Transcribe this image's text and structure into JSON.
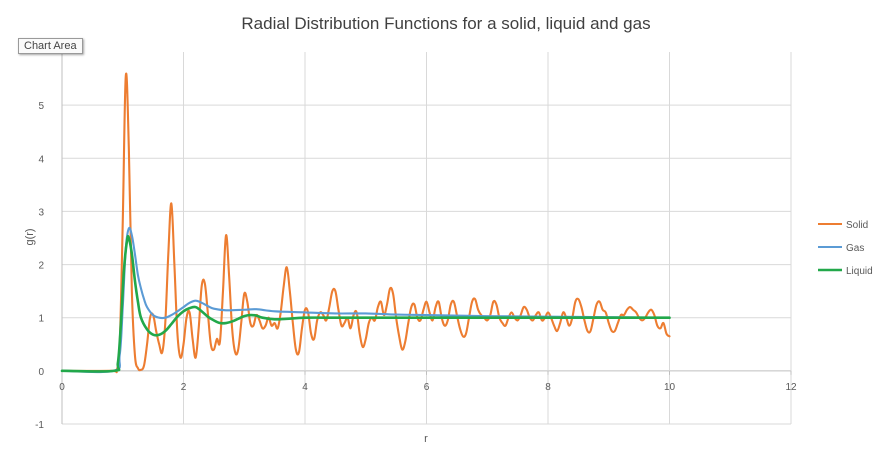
{
  "tooltip": "Chart Area",
  "colors": {
    "grid": "#d9d9d9",
    "axis": "#bfbfbf",
    "text": "#595959",
    "title": "#404040"
  },
  "chart_data": {
    "type": "line",
    "title": "Radial Distribution Functions for a solid, liquid and gas",
    "xlabel": "r",
    "ylabel": "g(r)",
    "xlim": [
      0,
      12
    ],
    "ylim": [
      -1,
      6
    ],
    "x_ticks": [
      0,
      2,
      4,
      6,
      8,
      10,
      12
    ],
    "y_ticks": [
      -1,
      0,
      1,
      2,
      3,
      4,
      5
    ],
    "grid": true,
    "legend": "right",
    "series": [
      {
        "name": "Solid",
        "color": "#ed7d31",
        "points": [
          [
            0,
            0
          ],
          [
            0.8,
            0
          ],
          [
            0.9,
            0.02
          ],
          [
            0.95,
            0.5
          ],
          [
            1.0,
            2.8
          ],
          [
            1.05,
            5.55
          ],
          [
            1.1,
            4.2
          ],
          [
            1.15,
            1.5
          ],
          [
            1.2,
            0.3
          ],
          [
            1.25,
            0.05
          ],
          [
            1.3,
            0.02
          ],
          [
            1.35,
            0.1
          ],
          [
            1.4,
            0.5
          ],
          [
            1.45,
            1.0
          ],
          [
            1.5,
            1.05
          ],
          [
            1.55,
            0.75
          ],
          [
            1.6,
            0.5
          ],
          [
            1.65,
            0.35
          ],
          [
            1.7,
            0.9
          ],
          [
            1.75,
            2.2
          ],
          [
            1.8,
            3.15
          ],
          [
            1.85,
            2.0
          ],
          [
            1.9,
            0.7
          ],
          [
            1.95,
            0.25
          ],
          [
            2.0,
            0.5
          ],
          [
            2.05,
            1.0
          ],
          [
            2.1,
            1.1
          ],
          [
            2.15,
            0.6
          ],
          [
            2.2,
            0.25
          ],
          [
            2.25,
            0.8
          ],
          [
            2.3,
            1.6
          ],
          [
            2.35,
            1.65
          ],
          [
            2.4,
            1.1
          ],
          [
            2.45,
            0.5
          ],
          [
            2.5,
            0.4
          ],
          [
            2.55,
            0.6
          ],
          [
            2.6,
            0.55
          ],
          [
            2.65,
            1.5
          ],
          [
            2.7,
            2.55
          ],
          [
            2.75,
            1.8
          ],
          [
            2.8,
            0.8
          ],
          [
            2.85,
            0.35
          ],
          [
            2.9,
            0.4
          ],
          [
            2.95,
            0.9
          ],
          [
            3.0,
            1.45
          ],
          [
            3.05,
            1.3
          ],
          [
            3.1,
            0.9
          ],
          [
            3.15,
            0.85
          ],
          [
            3.2,
            1.05
          ],
          [
            3.25,
            0.95
          ],
          [
            3.3,
            0.8
          ],
          [
            3.35,
            0.85
          ],
          [
            3.4,
            1.0
          ],
          [
            3.45,
            0.85
          ],
          [
            3.5,
            0.9
          ],
          [
            3.55,
            0.8
          ],
          [
            3.6,
            1.1
          ],
          [
            3.65,
            1.6
          ],
          [
            3.7,
            1.95
          ],
          [
            3.75,
            1.5
          ],
          [
            3.8,
            0.9
          ],
          [
            3.85,
            0.4
          ],
          [
            3.9,
            0.35
          ],
          [
            3.95,
            0.8
          ],
          [
            4.0,
            1.15
          ],
          [
            4.05,
            1.1
          ],
          [
            4.1,
            0.7
          ],
          [
            4.15,
            0.6
          ],
          [
            4.2,
            0.95
          ],
          [
            4.25,
            1.1
          ],
          [
            4.3,
            1.05
          ],
          [
            4.35,
            0.95
          ],
          [
            4.4,
            1.2
          ],
          [
            4.45,
            1.5
          ],
          [
            4.5,
            1.5
          ],
          [
            4.55,
            1.15
          ],
          [
            4.6,
            0.85
          ],
          [
            4.65,
            0.9
          ],
          [
            4.7,
            1.0
          ],
          [
            4.75,
            0.8
          ],
          [
            4.8,
            1.05
          ],
          [
            4.85,
            1.1
          ],
          [
            4.9,
            0.7
          ],
          [
            4.95,
            0.45
          ],
          [
            5.0,
            0.6
          ],
          [
            5.05,
            0.9
          ],
          [
            5.1,
            1.0
          ],
          [
            5.15,
            0.95
          ],
          [
            5.2,
            1.2
          ],
          [
            5.25,
            1.3
          ],
          [
            5.3,
            1.05
          ],
          [
            5.35,
            1.25
          ],
          [
            5.4,
            1.55
          ],
          [
            5.45,
            1.45
          ],
          [
            5.5,
            1.0
          ],
          [
            5.55,
            0.65
          ],
          [
            5.6,
            0.4
          ],
          [
            5.65,
            0.55
          ],
          [
            5.7,
            0.9
          ],
          [
            5.75,
            1.2
          ],
          [
            5.8,
            1.25
          ],
          [
            5.85,
            1.0
          ],
          [
            5.9,
            0.95
          ],
          [
            5.95,
            1.15
          ],
          [
            6.0,
            1.3
          ],
          [
            6.05,
            1.1
          ],
          [
            6.1,
            0.95
          ],
          [
            6.15,
            1.2
          ],
          [
            6.2,
            1.3
          ],
          [
            6.25,
            1.0
          ],
          [
            6.3,
            0.85
          ],
          [
            6.35,
            0.95
          ],
          [
            6.4,
            1.25
          ],
          [
            6.45,
            1.3
          ],
          [
            6.5,
            1.05
          ],
          [
            6.55,
            0.8
          ],
          [
            6.6,
            0.65
          ],
          [
            6.65,
            0.7
          ],
          [
            6.7,
            1.0
          ],
          [
            6.75,
            1.3
          ],
          [
            6.8,
            1.35
          ],
          [
            6.85,
            1.15
          ],
          [
            6.9,
            1.05
          ],
          [
            6.95,
            1.0
          ],
          [
            7.0,
            0.95
          ],
          [
            7.05,
            1.05
          ],
          [
            7.1,
            1.3
          ],
          [
            7.15,
            1.25
          ],
          [
            7.2,
            1.0
          ],
          [
            7.25,
            0.9
          ],
          [
            7.3,
            0.85
          ],
          [
            7.35,
            1.0
          ],
          [
            7.4,
            1.1
          ],
          [
            7.45,
            1.0
          ],
          [
            7.5,
            0.95
          ],
          [
            7.55,
            1.05
          ],
          [
            7.6,
            1.2
          ],
          [
            7.65,
            1.15
          ],
          [
            7.7,
            1.0
          ],
          [
            7.75,
            0.95
          ],
          [
            7.8,
            1.05
          ],
          [
            7.85,
            1.1
          ],
          [
            7.9,
            0.95
          ],
          [
            7.95,
            1.0
          ],
          [
            8.0,
            1.1
          ],
          [
            8.05,
            1.0
          ],
          [
            8.1,
            0.85
          ],
          [
            8.15,
            0.75
          ],
          [
            8.2,
            0.9
          ],
          [
            8.25,
            1.1
          ],
          [
            8.3,
            1.0
          ],
          [
            8.35,
            0.85
          ],
          [
            8.4,
            1.0
          ],
          [
            8.45,
            1.3
          ],
          [
            8.5,
            1.35
          ],
          [
            8.55,
            1.2
          ],
          [
            8.6,
            0.95
          ],
          [
            8.65,
            0.75
          ],
          [
            8.7,
            0.75
          ],
          [
            8.75,
            1.0
          ],
          [
            8.8,
            1.25
          ],
          [
            8.85,
            1.3
          ],
          [
            8.9,
            1.15
          ],
          [
            8.95,
            1.1
          ],
          [
            9.0,
            0.9
          ],
          [
            9.05,
            0.75
          ],
          [
            9.1,
            0.75
          ],
          [
            9.15,
            0.9
          ],
          [
            9.2,
            1.05
          ],
          [
            9.25,
            1.05
          ],
          [
            9.3,
            1.15
          ],
          [
            9.35,
            1.2
          ],
          [
            9.4,
            1.15
          ],
          [
            9.45,
            1.1
          ],
          [
            9.5,
            1.0
          ],
          [
            9.55,
            0.95
          ],
          [
            9.6,
            1.0
          ],
          [
            9.65,
            1.1
          ],
          [
            9.7,
            1.15
          ],
          [
            9.75,
            1.05
          ],
          [
            9.8,
            0.85
          ],
          [
            9.85,
            0.8
          ],
          [
            9.9,
            0.9
          ],
          [
            9.95,
            0.7
          ],
          [
            10.0,
            0.65
          ]
        ]
      },
      {
        "name": "Gas",
        "color": "#5b9bd5",
        "points": [
          [
            0,
            0
          ],
          [
            0.85,
            0
          ],
          [
            0.95,
            0.3
          ],
          [
            1.0,
            1.2
          ],
          [
            1.05,
            2.3
          ],
          [
            1.1,
            2.68
          ],
          [
            1.15,
            2.55
          ],
          [
            1.2,
            2.2
          ],
          [
            1.25,
            1.8
          ],
          [
            1.3,
            1.55
          ],
          [
            1.35,
            1.35
          ],
          [
            1.4,
            1.2
          ],
          [
            1.5,
            1.05
          ],
          [
            1.6,
            1.0
          ],
          [
            1.7,
            1.0
          ],
          [
            1.8,
            1.05
          ],
          [
            1.9,
            1.12
          ],
          [
            2.0,
            1.2
          ],
          [
            2.1,
            1.28
          ],
          [
            2.2,
            1.32
          ],
          [
            2.3,
            1.28
          ],
          [
            2.4,
            1.22
          ],
          [
            2.5,
            1.17
          ],
          [
            2.7,
            1.14
          ],
          [
            3.0,
            1.15
          ],
          [
            3.2,
            1.16
          ],
          [
            3.5,
            1.12
          ],
          [
            4.0,
            1.1
          ],
          [
            4.5,
            1.08
          ],
          [
            5.0,
            1.08
          ],
          [
            5.5,
            1.06
          ],
          [
            6.0,
            1.05
          ],
          [
            7.0,
            1.03
          ],
          [
            8.0,
            1.02
          ],
          [
            9.0,
            1.01
          ],
          [
            10.0,
            1.0
          ]
        ]
      },
      {
        "name": "Liquid",
        "color": "#22a84a",
        "points": [
          [
            0,
            0
          ],
          [
            0.85,
            0
          ],
          [
            0.92,
            0.15
          ],
          [
            0.97,
            0.9
          ],
          [
            1.02,
            1.9
          ],
          [
            1.07,
            2.45
          ],
          [
            1.1,
            2.5
          ],
          [
            1.15,
            2.2
          ],
          [
            1.2,
            1.7
          ],
          [
            1.25,
            1.3
          ],
          [
            1.3,
            1.0
          ],
          [
            1.4,
            0.78
          ],
          [
            1.5,
            0.68
          ],
          [
            1.6,
            0.68
          ],
          [
            1.7,
            0.75
          ],
          [
            1.8,
            0.88
          ],
          [
            1.9,
            1.02
          ],
          [
            2.0,
            1.12
          ],
          [
            2.1,
            1.18
          ],
          [
            2.2,
            1.2
          ],
          [
            2.3,
            1.12
          ],
          [
            2.4,
            1.02
          ],
          [
            2.5,
            0.95
          ],
          [
            2.6,
            0.9
          ],
          [
            2.7,
            0.9
          ],
          [
            2.8,
            0.93
          ],
          [
            2.9,
            0.98
          ],
          [
            3.0,
            1.03
          ],
          [
            3.1,
            1.05
          ],
          [
            3.2,
            1.04
          ],
          [
            3.3,
            1.0
          ],
          [
            3.5,
            0.97
          ],
          [
            3.7,
            0.98
          ],
          [
            4.0,
            1.0
          ],
          [
            4.5,
            1.0
          ],
          [
            5.0,
            1.0
          ],
          [
            6.0,
            1.0
          ],
          [
            7.0,
            1.0
          ],
          [
            8.0,
            1.0
          ],
          [
            9.0,
            1.0
          ],
          [
            10.0,
            1.0
          ]
        ]
      }
    ]
  }
}
